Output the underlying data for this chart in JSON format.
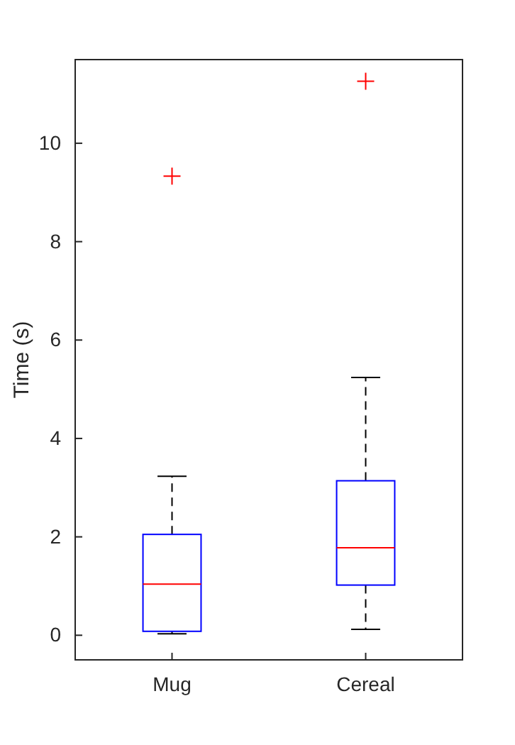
{
  "chart_data": {
    "type": "box",
    "ylabel": "Time (s)",
    "categories": [
      "Mug",
      "Cereal"
    ],
    "ylim": [
      -0.5,
      11.7
    ],
    "yticks": [
      0,
      2,
      4,
      6,
      8,
      10
    ],
    "color": "#0000ff",
    "marker": "cross",
    "line_style": "dashed",
    "grid": false,
    "boxes": [
      {
        "low": 0.03,
        "q1": 0.08,
        "median": 1.04,
        "q3": 2.05,
        "high": 3.23,
        "outliers": [
          9.33
        ]
      },
      {
        "low": 0.12,
        "q1": 1.02,
        "median": 1.78,
        "q3": 3.14,
        "high": 5.24,
        "outliers": [
          11.26
        ]
      }
    ]
  }
}
